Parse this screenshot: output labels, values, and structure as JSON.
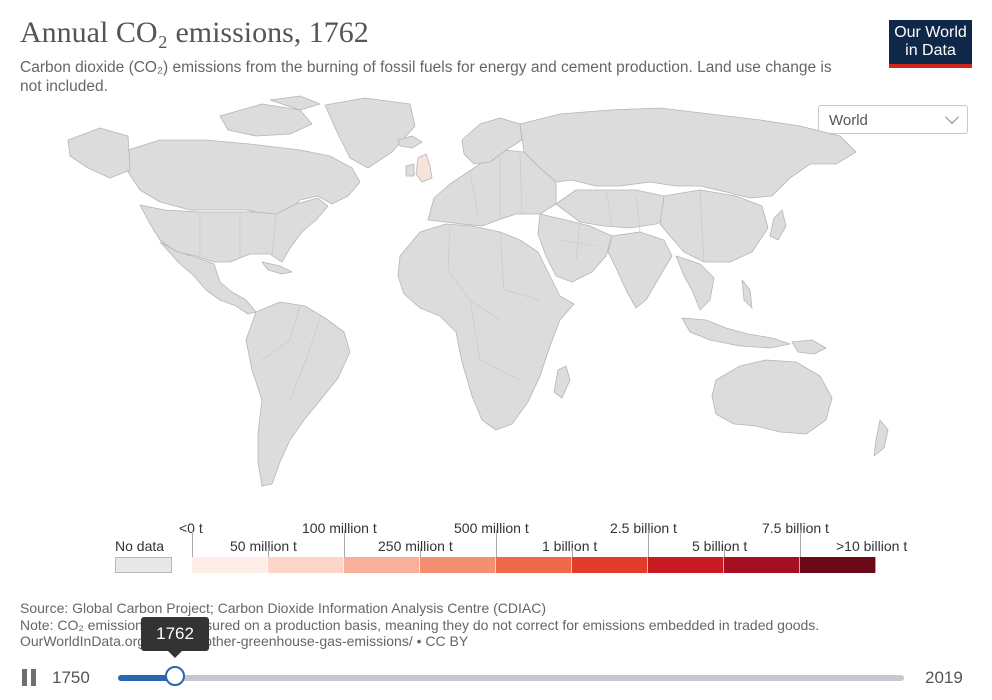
{
  "header": {
    "title": "Annual CO₂ emissions, 1762",
    "subtitle": "Carbon dioxide (CO₂) emissions from the burning of fossil fuels for energy and cement production. Land use change is not included."
  },
  "logo": {
    "line1": "Our World",
    "line2": "in Data"
  },
  "region_selector": {
    "value": "World",
    "icon": "chevron-down-icon"
  },
  "map": {
    "fill_color": "#dcdcdc",
    "border_color": "#b5b5b5",
    "background": "#ffffff",
    "highlighted_country": "United Kingdom",
    "highlight_color": "#f7e3dc"
  },
  "legend": {
    "no_data_label": "No data",
    "no_data_color": "#e8e8e8",
    "labels_top": [
      "<0 t",
      "100 million t",
      "500 million t",
      "2.5 billion t",
      "7.5 billion t"
    ],
    "labels_bottom": [
      "50 million t",
      "250 million t",
      "1 billion t",
      "5 billion t",
      ">10 billion t"
    ],
    "colors": [
      "#fdeee8",
      "#fbd5c7",
      "#f8b09a",
      "#f48f74",
      "#ef6a4b",
      "#e43c2a",
      "#c81b22",
      "#a50f20",
      "#6b0716"
    ]
  },
  "footer": {
    "source": "Source: Global Carbon Project; Carbon Dioxide Information Analysis Centre (CDIAC)",
    "note": "Note: CO₂ emissions are measured on a production basis, meaning they do not correct for emissions embedded in traded goods.",
    "url": "OurWorldInData.org/co2-and-other-greenhouse-gas-emissions/ • CC BY"
  },
  "timeline": {
    "start_year": "1750",
    "end_year": "2019",
    "current_year": "1762",
    "current_value": 1762,
    "min": 1750,
    "max": 2019,
    "accent_color": "#2a66b0"
  }
}
